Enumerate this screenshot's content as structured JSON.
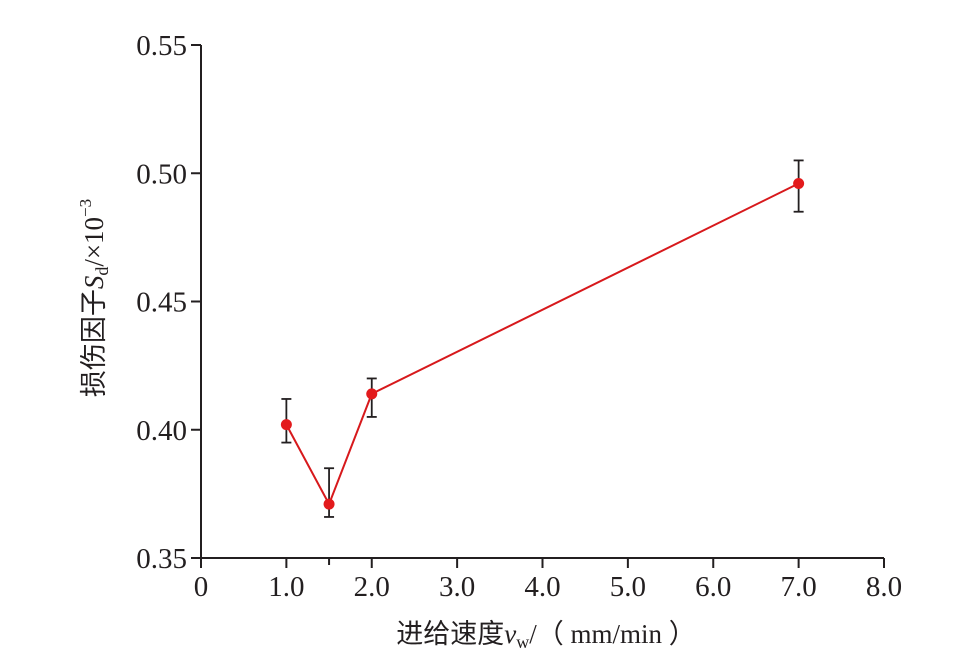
{
  "chart_data": {
    "type": "line",
    "x": [
      1.0,
      1.5,
      2.0,
      7.0
    ],
    "series": [
      {
        "values": [
          0.402,
          0.371,
          0.414,
          0.496
        ],
        "error_upper": [
          0.412,
          0.385,
          0.42,
          0.505
        ],
        "error_lower": [
          0.395,
          0.366,
          0.405,
          0.485
        ],
        "color": "#d7191c",
        "marker_color": "#e31a1c"
      }
    ],
    "xlim": [
      0,
      8
    ],
    "ylim": [
      0.35,
      0.55
    ],
    "x_ticks": [
      "0",
      "1.0",
      "2.0",
      "3.0",
      "4.0",
      "5.0",
      "6.0",
      "7.0",
      "8.0"
    ],
    "y_ticks": [
      "0.35",
      "0.40",
      "0.45",
      "0.50",
      "0.55"
    ],
    "x_tick_values": [
      0,
      1,
      2,
      3,
      4,
      5,
      6,
      7,
      8
    ],
    "y_tick_values": [
      0.35,
      0.4,
      0.45,
      0.5,
      0.55
    ],
    "extra_x_ticks": [
      1.5
    ],
    "xlabel": {
      "prefix": "进给速度",
      "var": "v",
      "sub": "w",
      "suffix": "/（ mm/min ）"
    },
    "ylabel": {
      "prefix": "损伤因子",
      "var": "S",
      "sub": "d",
      "suffix": "/×10",
      "sup": "−3"
    },
    "grid": false,
    "axis_color": "#231f20"
  }
}
